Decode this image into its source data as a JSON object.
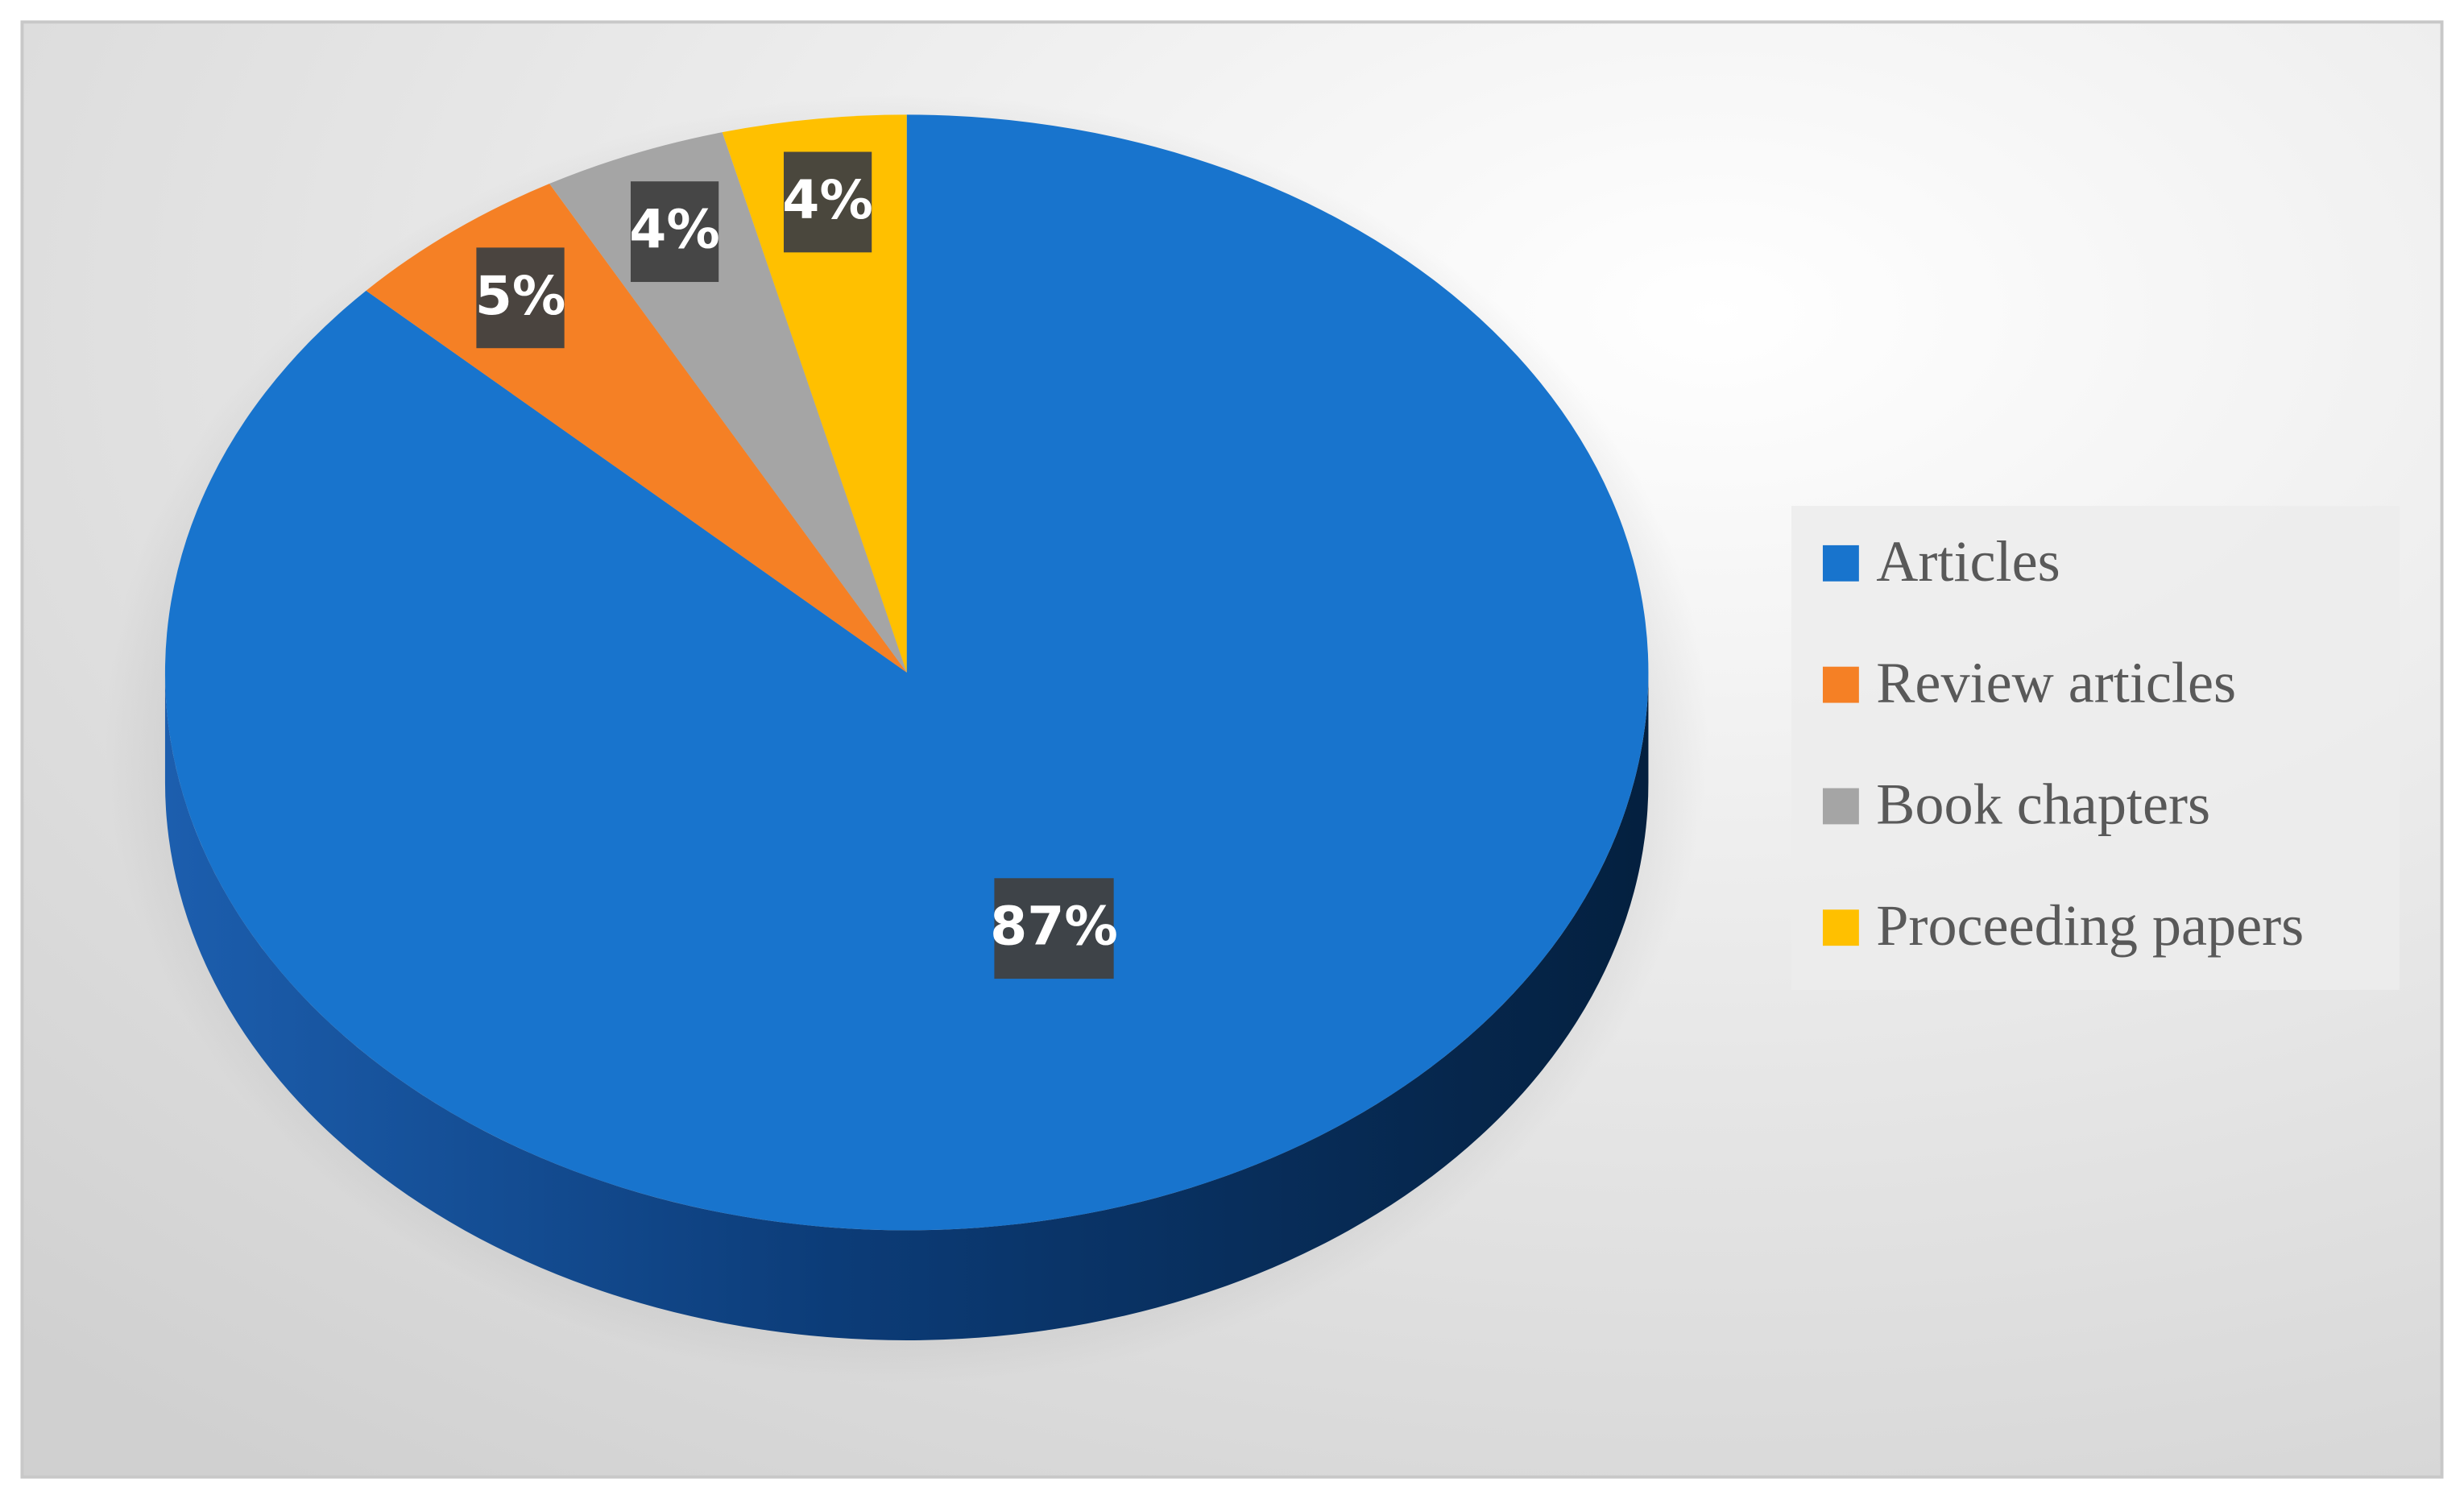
{
  "chart_data": {
    "type": "pie",
    "categories": [
      "Articles",
      "Review articles",
      "Book chapters",
      "Proceeding papers"
    ],
    "values": [
      87,
      5,
      4,
      4
    ],
    "value_labels": [
      "87%",
      "5%",
      "4%",
      "4%"
    ],
    "colors": [
      "#1874cd",
      "#f58025",
      "#a5a5a5",
      "#ffc000"
    ],
    "legend": "right"
  }
}
